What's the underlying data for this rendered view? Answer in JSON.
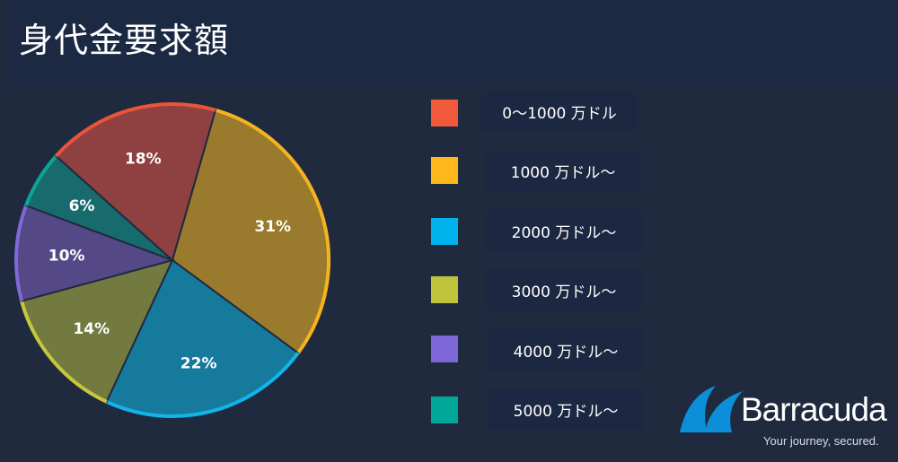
{
  "header": {
    "title": "身代金要求額"
  },
  "chart_data": {
    "type": "pie",
    "title": "身代金要求額",
    "slices": [
      {
        "label": "0〜1000 万ドル",
        "value": 18,
        "display": "18%",
        "color": "#f05a3a",
        "fill": "#8f4040",
        "edge": "#e8553a"
      },
      {
        "label": "1000 万ドル〜",
        "value": 31,
        "display": "31%",
        "color": "#ffb81c",
        "fill": "#9a7a2c",
        "edge": "#f5b41f"
      },
      {
        "label": "2000 万ドル〜",
        "value": 22,
        "display": "22%",
        "color": "#00b3ec",
        "fill": "#157a9c",
        "edge": "#12b4ea"
      },
      {
        "label": "3000 万ドル〜",
        "value": 14,
        "display": "14%",
        "color": "#c0c43c",
        "fill": "#727a3f",
        "edge": "#c5c83e"
      },
      {
        "label": "4000 万ドル〜",
        "value": 10,
        "display": "10%",
        "color": "#7d66d6",
        "fill": "#544887",
        "edge": "#7f69d8"
      },
      {
        "label": "5000 万ドル〜",
        "value": 6,
        "display": "6%",
        "color": "#00a89a",
        "fill": "#176b6d",
        "edge": "#0aa596"
      }
    ],
    "legend_position": "right"
  },
  "logo": {
    "name": "Barracuda",
    "tagline": "Your journey, secured."
  }
}
